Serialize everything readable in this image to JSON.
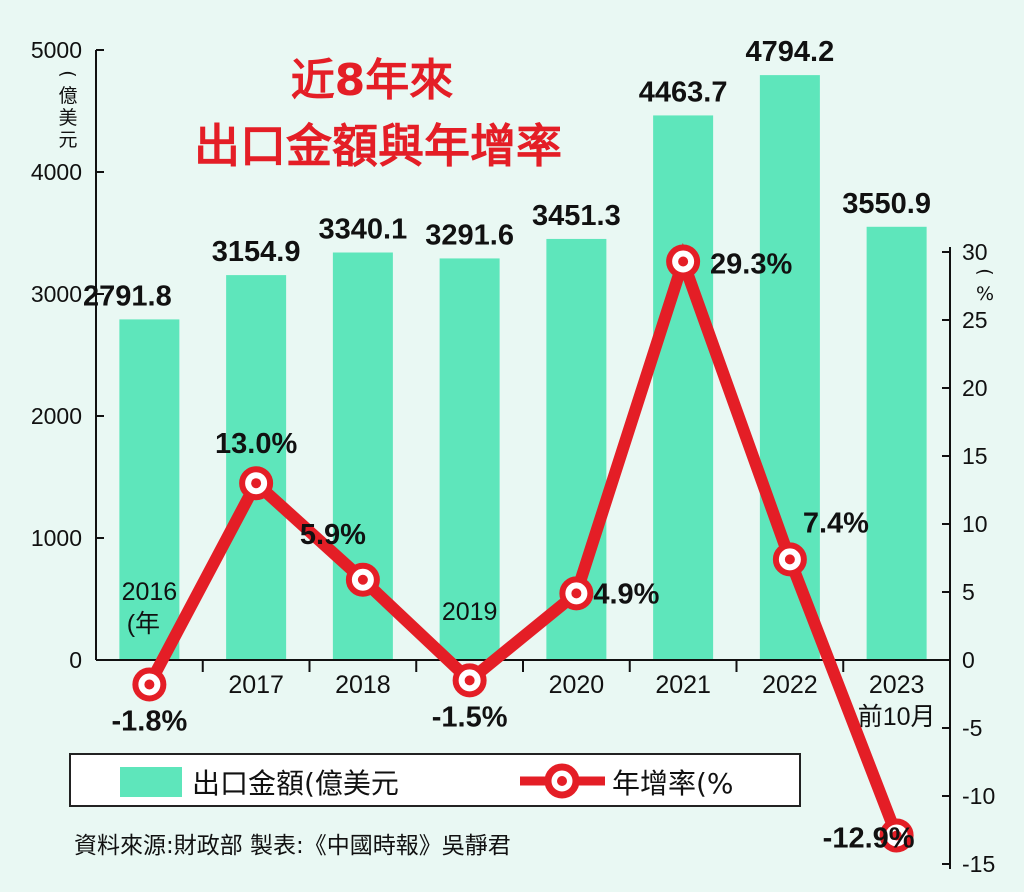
{
  "chart_data": {
    "type": "bar+line",
    "title_line1": "近8年來",
    "title_line2": "出口金額與年增率",
    "left_axis": {
      "unit": "(億美元",
      "ticks": [
        "0",
        "1000",
        "2000",
        "3000",
        "4000",
        "5000"
      ],
      "range": [
        0,
        5000
      ]
    },
    "right_axis": {
      "unit": "(%",
      "ticks": [
        "-15",
        "-10",
        "-5",
        "0",
        "5",
        "10",
        "15",
        "20",
        "25",
        "30"
      ],
      "range": [
        -15,
        30
      ]
    },
    "categories": [
      {
        "line1": "2016",
        "line2": "(年"
      },
      {
        "line1": "2017",
        "line2": ""
      },
      {
        "line1": "2018",
        "line2": ""
      },
      {
        "line1": "2019",
        "line2": ""
      },
      {
        "line1": "2020",
        "line2": ""
      },
      {
        "line1": "2021",
        "line2": ""
      },
      {
        "line1": "2022",
        "line2": ""
      },
      {
        "line1": "2023",
        "line2": "前10月"
      }
    ],
    "series": [
      {
        "name": "出口金額",
        "legend_label": "出口金額(億美元",
        "axis": "left",
        "type": "bar",
        "color": "#5ee6bb",
        "values": [
          2791.8,
          3154.9,
          3340.1,
          3291.6,
          3451.3,
          4463.7,
          4794.2,
          3550.9
        ],
        "labels": [
          "2791.8",
          "3154.9",
          "3340.1",
          "3291.6",
          "3451.3",
          "4463.7",
          "4794.2",
          "3550.9"
        ]
      },
      {
        "name": "年增率",
        "legend_label": "年增率(%",
        "axis": "right",
        "type": "line",
        "color": "#e41e26",
        "values": [
          -1.8,
          13.0,
          5.9,
          -1.5,
          4.9,
          29.3,
          7.4,
          -12.9
        ],
        "labels": [
          "-1.8%",
          "13.0%",
          "5.9%",
          "-1.5%",
          "4.9%",
          "29.3%",
          "7.4%",
          "-12.9%"
        ]
      }
    ],
    "source": "資料來源:財政部  製表:《中國時報》吳靜君"
  }
}
